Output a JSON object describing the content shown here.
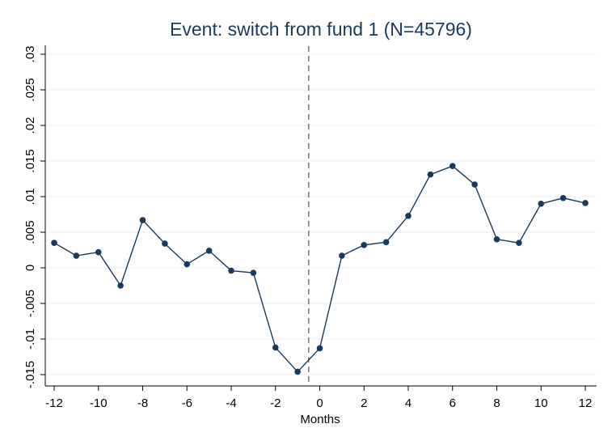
{
  "chart_data": {
    "type": "line",
    "title": "Event: switch from fund 1 (N=45796)",
    "xlabel": "Months",
    "ylabel": "",
    "xlim": [
      -12,
      12
    ],
    "ylim": [
      -0.015,
      0.03
    ],
    "x_ticks": [
      -12,
      -10,
      -8,
      -6,
      -4,
      -2,
      0,
      2,
      4,
      6,
      8,
      10,
      12
    ],
    "x_tick_labels": [
      "-12",
      "-10",
      "-8",
      "-6",
      "-4",
      "-2",
      "0",
      "2",
      "4",
      "6",
      "8",
      "10",
      "12"
    ],
    "y_ticks": [
      -0.015,
      -0.01,
      -0.005,
      0,
      0.005,
      0.01,
      0.015,
      0.02,
      0.025,
      0.03
    ],
    "y_tick_labels": [
      "-.015",
      "-.01",
      "-.005",
      "0",
      ".005",
      ".01",
      ".015",
      ".02",
      ".025",
      ".03"
    ],
    "grid": true,
    "event_line_x": -0.5,
    "colors": {
      "line": "#1a3a5c",
      "marker": "#1a3a5c",
      "grid": "#e8eef2",
      "event_line": "#808080"
    },
    "series": [
      {
        "x": [
          -12,
          -11,
          -10,
          -9,
          -8,
          -7,
          -6,
          -5,
          -4,
          -3,
          -2,
          -1,
          0,
          1,
          2,
          3,
          4,
          5,
          6,
          7,
          8,
          9,
          10,
          11,
          12
        ],
        "values": [
          0.0035,
          0.0017,
          0.0022,
          -0.0025,
          0.0067,
          0.0034,
          0.0005,
          0.0024,
          -0.0004,
          -0.0007,
          -0.0112,
          -0.0146,
          -0.0113,
          0.0017,
          0.0032,
          0.0036,
          0.0073,
          0.0131,
          0.0143,
          0.0117,
          0.004,
          0.0035,
          0.009,
          0.0098,
          0.0091
        ]
      }
    ]
  }
}
